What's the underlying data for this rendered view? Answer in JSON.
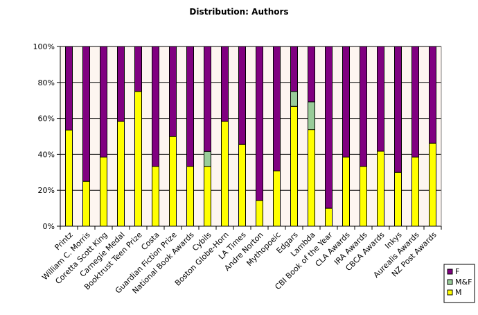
{
  "chart_data": {
    "type": "bar",
    "stacked": "percent",
    "title": "Distribution: Authors",
    "xlabel": "",
    "ylabel": "",
    "ylim": [
      0,
      100
    ],
    "yticks": [
      "0%",
      "20%",
      "40%",
      "60%",
      "80%",
      "100%"
    ],
    "grid": true,
    "legend_position": "bottom-right",
    "categories": [
      "Printz",
      "William C. Morris",
      "Coretta Scott King",
      "Carnegie Medal",
      "Booktrust Teen Prize",
      "Costa",
      "Guardian Fiction Prize",
      "National Book Awards",
      "Cybils",
      "Boston Globe-Horn",
      "LA Times",
      "Andre Norton",
      "Mythopoeic",
      "Edgars",
      "Lambda",
      "CBI Book of the Year",
      "CLA Awards",
      "IRA Awards",
      "CBCA Awards",
      "Inkys",
      "Aurealis Awards",
      "NZ Post Awards"
    ],
    "series": [
      {
        "name": "M",
        "color": "#ffff00",
        "values": [
          53.5,
          25,
          38.5,
          58.3,
          75,
          33.3,
          50,
          33.3,
          33.3,
          58.3,
          45.5,
          14.3,
          30.8,
          66.7,
          53.8,
          10,
          38.5,
          33.3,
          41.7,
          30,
          38.5,
          46.2
        ]
      },
      {
        "name": "M&F",
        "color": "#99cc99",
        "values": [
          0,
          0,
          0,
          0,
          0,
          0,
          0,
          0,
          8.3,
          0,
          0,
          0,
          0,
          8.3,
          15.4,
          0,
          0,
          0,
          0,
          0,
          0,
          0
        ]
      },
      {
        "name": "F",
        "color": "#800080",
        "values": [
          46.5,
          75,
          61.5,
          41.7,
          25,
          66.7,
          50,
          66.7,
          58.4,
          41.7,
          54.5,
          85.7,
          69.2,
          25,
          30.8,
          90,
          61.5,
          66.7,
          58.3,
          70,
          61.5,
          53.8
        ]
      }
    ],
    "legend_order": [
      "F",
      "M&F",
      "M"
    ],
    "plot_background": "#fdf5f0"
  }
}
